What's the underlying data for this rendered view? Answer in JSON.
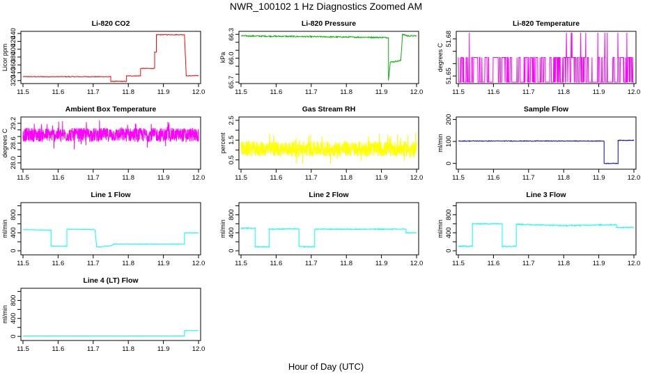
{
  "figure": {
    "title": "NWR_100102  1 Hz Diagnostics Zoomed AM",
    "xlabel": "Hour of Day (UTC)"
  },
  "chart_data": [
    {
      "type": "line",
      "title": "Li-820 CO2",
      "ylabel": "Licor ppm",
      "color": "#ff0000",
      "xlim": [
        11.5,
        12.0
      ],
      "ylim": [
        316,
        442
      ],
      "xticks": [
        "11.5",
        "11.6",
        "11.7",
        "11.8",
        "11.9",
        "12.0"
      ],
      "yticks": [
        {
          "v": 320,
          "label": "320"
        },
        {
          "v": 340,
          "label": "340"
        },
        {
          "v": 360,
          "label": "360"
        },
        {
          "v": 380,
          "label": "380"
        },
        {
          "v": 400,
          "label": "400"
        },
        {
          "v": 420,
          "label": "420"
        },
        {
          "v": 440,
          "label": "440"
        }
      ],
      "series": [
        {
          "x": [
            11.5,
            11.75,
            11.75,
            11.8,
            11.8,
            11.835,
            11.835,
            11.875,
            11.875,
            11.96,
            11.96,
            12.0
          ],
          "y": [
            330,
            330,
            330,
            315,
            330,
            345,
            360,
            378,
            405,
            438,
            333,
            333
          ],
          "steps": [
            [
              11.5,
              330
            ],
            [
              11.75,
              330
            ],
            [
              11.75,
              318
            ],
            [
              11.795,
              318
            ],
            [
              11.795,
              332
            ],
            [
              11.835,
              332
            ],
            [
              11.835,
              351
            ],
            [
              11.875,
              351
            ],
            [
              11.875,
              392
            ],
            [
              11.88,
              392
            ],
            [
              11.88,
              437
            ],
            [
              11.96,
              437
            ],
            [
              11.965,
              332
            ],
            [
              12.0,
              333
            ]
          ],
          "noise": 0.8
        }
      ]
    },
    {
      "type": "line",
      "title": "Li-820 Pressure",
      "ylabel": "kPa",
      "color": "#00b400",
      "xlim": [
        11.5,
        12.0
      ],
      "ylim": [
        65.7,
        66.32
      ],
      "xticks": [
        "11.5",
        "11.6",
        "11.7",
        "11.8",
        "11.9",
        "12.0"
      ],
      "yticks": [
        {
          "v": 65.7,
          "label": "65.7"
        },
        {
          "v": 65.8,
          "label": ""
        },
        {
          "v": 65.9,
          "label": ""
        },
        {
          "v": 66.0,
          "label": "66.0"
        },
        {
          "v": 66.1,
          "label": ""
        },
        {
          "v": 66.2,
          "label": ""
        },
        {
          "v": 66.3,
          "label": "66.3"
        }
      ],
      "series": [
        {
          "steps": [
            [
              11.5,
              66.28
            ],
            [
              11.92,
              66.26
            ],
            [
              11.92,
              65.72
            ],
            [
              11.925,
              65.95
            ],
            [
              11.955,
              65.97
            ],
            [
              11.96,
              66.3
            ],
            [
              11.975,
              66.28
            ],
            [
              12.0,
              66.28
            ]
          ],
          "noise": 0.008
        }
      ]
    },
    {
      "type": "line",
      "title": "Li-820 Temperature",
      "ylabel": "degrees C",
      "color": "#ff00ff",
      "xlim": [
        11.5,
        12.0
      ],
      "ylim": [
        51.645,
        51.685
      ],
      "xticks": [
        "11.5",
        "11.6",
        "11.7",
        "11.8",
        "11.9",
        "12.0"
      ],
      "yticks": [
        {
          "v": 51.65,
          "label": "51.65"
        },
        {
          "v": 51.66,
          "label": ""
        },
        {
          "v": 51.67,
          "label": ""
        },
        {
          "v": 51.68,
          "label": "51.68"
        }
      ],
      "series": [
        {
          "binary": [
            51.645,
            51.665
          ],
          "spike": 51.685
        }
      ]
    },
    {
      "type": "line",
      "title": "Ambient Box Temperature",
      "ylabel": "degrees C",
      "color": "#ff00ff",
      "xlim": [
        11.5,
        12.0
      ],
      "ylim": [
        27.85,
        29.35
      ],
      "xticks": [
        "11.5",
        "11.6",
        "11.7",
        "11.8",
        "11.9",
        "12.0"
      ],
      "yticks": [
        {
          "v": 28.0,
          "label": "28.0"
        },
        {
          "v": 28.2,
          "label": ""
        },
        {
          "v": 28.4,
          "label": ""
        },
        {
          "v": 28.6,
          "label": "28.6"
        },
        {
          "v": 28.8,
          "label": ""
        },
        {
          "v": 29.0,
          "label": ""
        },
        {
          "v": 29.2,
          "label": "29.2"
        }
      ],
      "series": [
        {
          "center": 28.85,
          "noise": 0.3
        }
      ]
    },
    {
      "type": "line",
      "title": "Gas Stream RH",
      "ylabel": "percent",
      "color": "#ffff00",
      "xlim": [
        11.5,
        12.0
      ],
      "ylim": [
        0.1,
        2.6
      ],
      "xticks": [
        "11.5",
        "11.6",
        "11.7",
        "11.8",
        "11.9",
        "12.0"
      ],
      "yticks": [
        {
          "v": 0.5,
          "label": "0.5"
        },
        {
          "v": 1.0,
          "label": ""
        },
        {
          "v": 1.5,
          "label": "1.5"
        },
        {
          "v": 2.0,
          "label": ""
        },
        {
          "v": 2.5,
          "label": "2.5"
        }
      ],
      "series": [
        {
          "center": 1.05,
          "noise": 0.55
        }
      ]
    },
    {
      "type": "line",
      "title": "Sample Flow",
      "ylabel": "ml/min",
      "color": "#0000c8",
      "xlim": [
        11.5,
        12.0
      ],
      "ylim": [
        -20,
        205
      ],
      "xticks": [
        "11.5",
        "11.6",
        "11.7",
        "11.8",
        "11.9",
        "12.0"
      ],
      "yticks": [
        {
          "v": 0,
          "label": "0"
        },
        {
          "v": 100,
          "label": "100"
        },
        {
          "v": 200,
          "label": "200"
        }
      ],
      "series": [
        {
          "steps": [
            [
              11.5,
              102
            ],
            [
              11.915,
              102
            ],
            [
              11.915,
              0
            ],
            [
              11.955,
              0
            ],
            [
              11.955,
              105
            ],
            [
              12.0,
              105
            ]
          ],
          "noise": 1.5
        }
      ]
    },
    {
      "type": "line",
      "title": "Line 1 Flow",
      "ylabel": "ml/min",
      "color": "#00ffff",
      "xlim": [
        11.5,
        12.0
      ],
      "ylim": [
        -60,
        1040
      ],
      "xticks": [
        "11.5",
        "11.6",
        "11.7",
        "11.8",
        "11.9",
        "12.0"
      ],
      "yticks": [
        {
          "v": 0,
          "label": "0"
        },
        {
          "v": 200,
          "label": ""
        },
        {
          "v": 400,
          "label": "400"
        },
        {
          "v": 600,
          "label": ""
        },
        {
          "v": 800,
          "label": "800"
        },
        {
          "v": 1000,
          "label": ""
        }
      ],
      "series": [
        {
          "steps": [
            [
              11.5,
              470
            ],
            [
              11.58,
              460
            ],
            [
              11.58,
              100
            ],
            [
              11.625,
              100
            ],
            [
              11.625,
              480
            ],
            [
              11.705,
              470
            ],
            [
              11.71,
              80
            ],
            [
              11.75,
              110
            ],
            [
              11.76,
              150
            ],
            [
              11.96,
              150
            ],
            [
              11.96,
              400
            ],
            [
              12.0,
              400
            ]
          ],
          "noise": 6
        }
      ]
    },
    {
      "type": "line",
      "title": "Line 2 Flow",
      "ylabel": "ml/min",
      "color": "#00ffff",
      "xlim": [
        11.5,
        12.0
      ],
      "ylim": [
        -60,
        1040
      ],
      "xticks": [
        "11.5",
        "11.6",
        "11.7",
        "11.8",
        "11.9",
        "12.0"
      ],
      "yticks": [
        {
          "v": 0,
          "label": "0"
        },
        {
          "v": 200,
          "label": ""
        },
        {
          "v": 400,
          "label": "400"
        },
        {
          "v": 600,
          "label": ""
        },
        {
          "v": 800,
          "label": "800"
        },
        {
          "v": 1000,
          "label": ""
        }
      ],
      "series": [
        {
          "steps": [
            [
              11.5,
              500
            ],
            [
              11.54,
              500
            ],
            [
              11.54,
              90
            ],
            [
              11.58,
              90
            ],
            [
              11.58,
              480
            ],
            [
              11.665,
              490
            ],
            [
              11.665,
              90
            ],
            [
              11.71,
              90
            ],
            [
              11.71,
              480
            ],
            [
              11.97,
              480
            ],
            [
              11.97,
              400
            ],
            [
              12.0,
              400
            ]
          ],
          "noise": 10
        }
      ]
    },
    {
      "type": "line",
      "title": "Line 3 Flow",
      "ylabel": "ml/min",
      "color": "#00ffff",
      "xlim": [
        11.5,
        12.0
      ],
      "ylim": [
        -60,
        1040
      ],
      "xticks": [
        "11.5",
        "11.6",
        "11.7",
        "11.8",
        "11.9",
        "12.0"
      ],
      "yticks": [
        {
          "v": 0,
          "label": "0"
        },
        {
          "v": 200,
          "label": ""
        },
        {
          "v": 400,
          "label": "400"
        },
        {
          "v": 600,
          "label": ""
        },
        {
          "v": 800,
          "label": "800"
        },
        {
          "v": 1000,
          "label": ""
        }
      ],
      "series": [
        {
          "steps": [
            [
              11.5,
              100
            ],
            [
              11.54,
              100
            ],
            [
              11.54,
              600
            ],
            [
              11.625,
              600
            ],
            [
              11.625,
              100
            ],
            [
              11.665,
              100
            ],
            [
              11.665,
              590
            ],
            [
              11.8,
              560
            ],
            [
              11.95,
              580
            ],
            [
              11.95,
              520
            ],
            [
              12.0,
              520
            ]
          ],
          "noise": 12
        }
      ]
    },
    {
      "type": "line",
      "title": "Line 4 (LT) Flow",
      "ylabel": "ml/min",
      "color": "#00ffff",
      "xlim": [
        11.5,
        12.0
      ],
      "ylim": [
        -60,
        1040
      ],
      "xticks": [
        "11.5",
        "11.6",
        "11.7",
        "11.8",
        "11.9",
        "12.0"
      ],
      "yticks": [
        {
          "v": 0,
          "label": "0"
        },
        {
          "v": 200,
          "label": ""
        },
        {
          "v": 400,
          "label": "400"
        },
        {
          "v": 600,
          "label": ""
        },
        {
          "v": 800,
          "label": "800"
        },
        {
          "v": 1000,
          "label": ""
        }
      ],
      "series": [
        {
          "steps": [
            [
              11.5,
              10
            ],
            [
              11.96,
              10
            ],
            [
              11.96,
              130
            ],
            [
              12.0,
              130
            ]
          ],
          "noise": 3
        }
      ]
    }
  ]
}
